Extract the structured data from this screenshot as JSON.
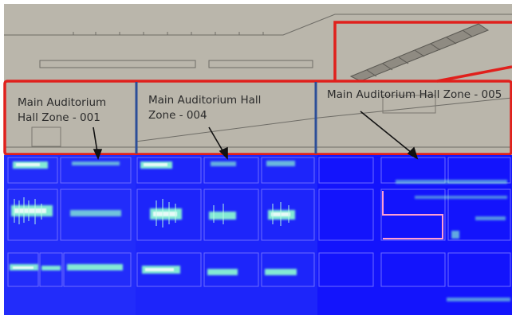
{
  "zones": [
    {
      "id": "001",
      "label": "Main Auditorium Hall Zone - 001"
    },
    {
      "id": "004",
      "label": "Main Auditorium Hall Zone - 004"
    },
    {
      "id": "005",
      "label": "Main Auditorium Hall Zone - 005"
    }
  ],
  "colors": {
    "drawing_bg": "#bab6ab",
    "line": "#6e6c66",
    "highlight": "#e0201c",
    "zone_divider": "#2c4e98",
    "heatmap_bg": "#1a1aff",
    "heatmap_glow": "#8fffd0"
  }
}
